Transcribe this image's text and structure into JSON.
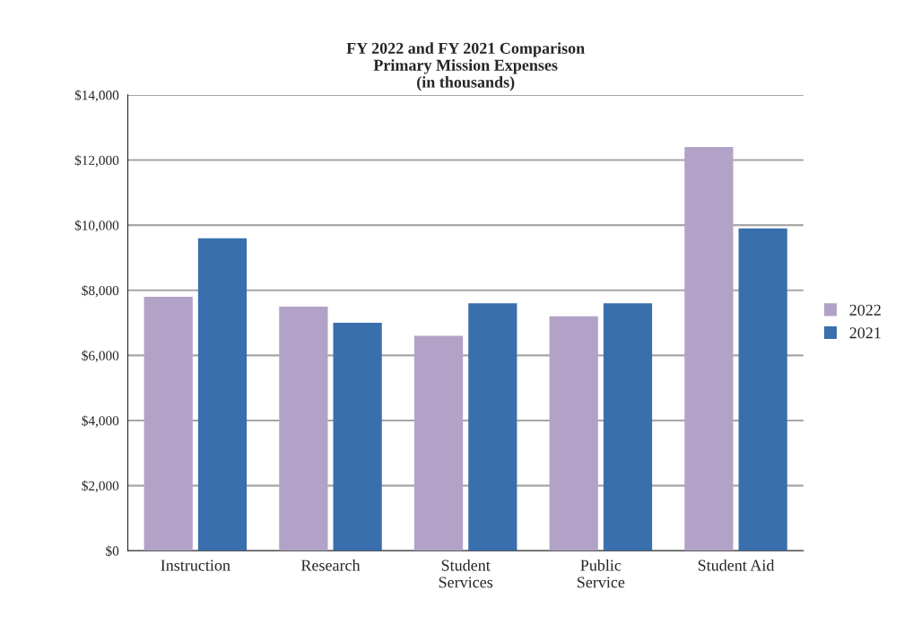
{
  "chart_data": {
    "type": "bar",
    "title": "FY 2022 and FY 2021 Comparison\nPrimary Mission Expenses\n(in thousands)",
    "categories": [
      "Instruction",
      "Research",
      "Student\nServices",
      "Public\nService",
      "Student Aid"
    ],
    "series": [
      {
        "name": "2022",
        "color": "#b3a2c7",
        "values": [
          7800,
          7500,
          6600,
          7200,
          12400
        ]
      },
      {
        "name": "2021",
        "color": "#3a6fae",
        "values": [
          9600,
          7000,
          7600,
          7600,
          9900
        ]
      }
    ],
    "ylim": [
      0,
      14000
    ],
    "yticks": [
      {
        "value": 0,
        "label": "$0"
      },
      {
        "value": 2000,
        "label": "$2,000"
      },
      {
        "value": 4000,
        "label": "$4,000"
      },
      {
        "value": 6000,
        "label": "$6,000"
      },
      {
        "value": 8000,
        "label": "$8,000"
      },
      {
        "value": 10000,
        "label": "$10,000"
      },
      {
        "value": 12000,
        "label": "$12,000"
      },
      {
        "value": 14000,
        "label": "$14,000"
      }
    ],
    "grid": "y",
    "legend": "right"
  }
}
